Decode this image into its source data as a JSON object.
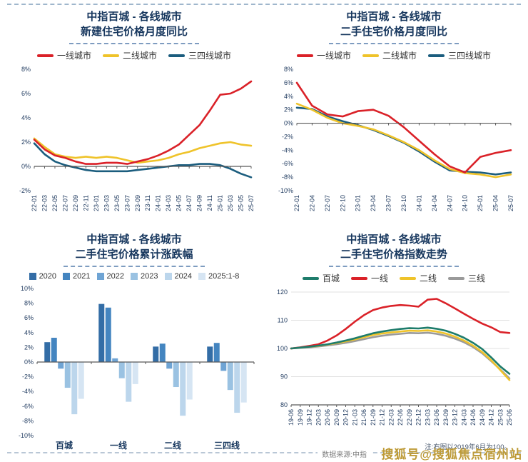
{
  "page": {
    "source_note": "数据来源:中指",
    "watermark": "搜狐号@搜狐焦点宿州站"
  },
  "chart_data": [
    {
      "id": "new-home-price-yoy",
      "type": "line",
      "title": [
        "中指百城 - 各线城市",
        "新建住宅价格月度同比"
      ],
      "ylim": [
        -2,
        8
      ],
      "yticks": [
        8,
        6,
        4,
        2,
        0,
        -2
      ],
      "ytick_suffix": "%",
      "axis": "zero",
      "grid": false,
      "legend_position": "top",
      "x": [
        "22-01",
        "22-03",
        "22-05",
        "22-07",
        "22-09",
        "22-11",
        "23-01",
        "23-03",
        "23-05",
        "23-07",
        "23-09",
        "23-11",
        "24-01",
        "24-03",
        "24-05",
        "24-07",
        "24-09",
        "24-11",
        "25-01",
        "25-03",
        "25-05",
        "25-07"
      ],
      "series": [
        {
          "name": "一线城市",
          "color": "#da2128",
          "values": [
            2.2,
            1.4,
            0.9,
            0.7,
            0.4,
            0.2,
            0.2,
            0.3,
            0.3,
            0.2,
            0.4,
            0.6,
            0.9,
            1.3,
            1.8,
            2.6,
            3.4,
            4.6,
            5.9,
            6.0,
            6.4,
            7.0
          ]
        },
        {
          "name": "二线城市",
          "color": "#efc32a",
          "values": [
            2.3,
            1.6,
            1.0,
            0.8,
            0.7,
            0.8,
            0.7,
            0.8,
            0.7,
            0.5,
            0.3,
            0.4,
            0.5,
            0.7,
            1.0,
            1.2,
            1.5,
            1.7,
            1.9,
            2.0,
            1.8,
            1.7
          ]
        },
        {
          "name": "三四线城市",
          "color": "#1b5d7e",
          "values": [
            1.9,
            1.0,
            0.4,
            0.1,
            -0.1,
            -0.3,
            -0.4,
            -0.4,
            -0.4,
            -0.4,
            -0.3,
            -0.2,
            -0.1,
            0.0,
            0.1,
            0.1,
            0.2,
            0.2,
            0.1,
            -0.2,
            -0.6,
            -0.9
          ]
        }
      ]
    },
    {
      "id": "second-hand-price-yoy",
      "type": "line",
      "title": [
        "中指百城 - 各线城市",
        "二手住宅价格月度同比"
      ],
      "ylim": [
        -10,
        8
      ],
      "yticks": [
        8,
        6,
        4,
        2,
        0,
        -2,
        -4,
        -6,
        -8,
        -10
      ],
      "ytick_suffix": "%",
      "axis": "zero",
      "grid": false,
      "legend_position": "top",
      "x": [
        "22-01",
        "22-04",
        "22-07",
        "22-10",
        "23-01",
        "23-04",
        "23-07",
        "23-10",
        "24-01",
        "24-04",
        "24-07",
        "24-10",
        "25-01",
        "25-04",
        "25-07"
      ],
      "series": [
        {
          "name": "一线城市",
          "color": "#da2128",
          "values": [
            6.0,
            2.6,
            1.3,
            1.0,
            1.8,
            2.0,
            1.1,
            -0.6,
            -2.6,
            -4.6,
            -6.4,
            -7.3,
            -5.0,
            -4.4,
            -4.0
          ]
        },
        {
          "name": "二线城市",
          "color": "#efc32a",
          "values": [
            2.9,
            2.0,
            0.8,
            0.0,
            -0.4,
            -0.9,
            -1.8,
            -2.8,
            -4.0,
            -5.5,
            -6.8,
            -7.4,
            -7.6,
            -8.0,
            -7.6
          ]
        },
        {
          "name": "三四线城市",
          "color": "#1b5d7e",
          "values": [
            2.3,
            2.1,
            1.0,
            0.3,
            -0.3,
            -1.0,
            -1.9,
            -2.9,
            -4.2,
            -5.7,
            -7.0,
            -7.2,
            -7.3,
            -7.6,
            -7.3
          ]
        }
      ]
    },
    {
      "id": "second-hand-cumulative-change",
      "type": "bar",
      "title": [
        "中指百城 - 各线城市",
        "二手住宅价格累计涨跌幅"
      ],
      "ylim": [
        -10,
        10
      ],
      "yticks": [
        10,
        8,
        6,
        4,
        2,
        0,
        -2,
        -4,
        -6,
        -8,
        -10
      ],
      "ytick_suffix": "%",
      "axis": "zero",
      "grid": false,
      "legend_position": "top",
      "categories": [
        "百城",
        "一线",
        "二线",
        "三四线"
      ],
      "series": [
        {
          "name": "2020",
          "color": "#336da6",
          "values": [
            2.7,
            7.9,
            2.1,
            2.1
          ]
        },
        {
          "name": "2021",
          "color": "#4485c0",
          "values": [
            3.3,
            7.4,
            2.5,
            2.6
          ]
        },
        {
          "name": "2022",
          "color": "#6fa4d4",
          "values": [
            -0.9,
            0.5,
            -0.9,
            -1.2
          ]
        },
        {
          "name": "2023",
          "color": "#9ac2e2",
          "values": [
            -3.5,
            -2.2,
            -3.4,
            -3.8
          ]
        },
        {
          "name": "2024",
          "color": "#bcd6ec",
          "values": [
            -7.1,
            -5.4,
            -7.3,
            -6.9
          ]
        },
        {
          "name": "2025:1-8",
          "color": "#d6e5f3",
          "values": [
            -5.0,
            -3.0,
            -5.1,
            -5.5
          ]
        }
      ]
    },
    {
      "id": "second-hand-price-index",
      "type": "line",
      "title": [
        "中指百城 - 各线城市",
        "二手住宅价格指数走势"
      ],
      "ylim": [
        80,
        120
      ],
      "yticks": [
        120,
        110,
        100,
        90,
        80
      ],
      "ytick_suffix": "",
      "axis": "bottom",
      "grid": true,
      "legend_position": "top",
      "note": "注:右图以2019年6月为100。",
      "x": [
        "19-06",
        "19-09",
        "19-12",
        "20-03",
        "20-06",
        "20-09",
        "20-12",
        "21-03",
        "21-06",
        "21-09",
        "21-12",
        "22-03",
        "22-06",
        "22-09",
        "22-12",
        "23-03",
        "23-06",
        "23-09",
        "23-12",
        "24-03",
        "24-06",
        "24-09",
        "24-12",
        "25-03",
        "25-06"
      ],
      "series": [
        {
          "name": "百城",
          "color": "#1e7c6b",
          "values": [
            100,
            100.3,
            100.6,
            101,
            101.5,
            102.1,
            102.8,
            103.6,
            104.5,
            105.4,
            106,
            106.5,
            106.9,
            107.2,
            107.1,
            107.4,
            107,
            106.3,
            105.2,
            103.8,
            102,
            99.8,
            96.8,
            93.6,
            91
          ]
        },
        {
          "name": "一线",
          "color": "#da2128",
          "values": [
            100,
            100.4,
            100.9,
            101.5,
            102.8,
            104.6,
            106.9,
            109.5,
            111.8,
            113.6,
            114.5,
            115.1,
            115.4,
            115.2,
            114.8,
            117.3,
            117.6,
            116,
            114.2,
            112.3,
            110.5,
            108.8,
            107.5,
            105.8,
            105.5
          ]
        },
        {
          "name": "二线",
          "color": "#efc32a",
          "values": [
            100,
            100.3,
            100.6,
            100.9,
            101.4,
            101.9,
            102.5,
            103.2,
            104,
            104.8,
            105.3,
            105.7,
            106,
            106.3,
            106.2,
            106.4,
            106,
            105.3,
            104.2,
            102.8,
            101,
            98.7,
            95.8,
            92.3,
            88.8
          ]
        },
        {
          "name": "三线",
          "color": "#9a9a9a",
          "values": [
            100,
            100.2,
            100.4,
            100.7,
            101.1,
            101.5,
            102,
            102.6,
            103.3,
            104,
            104.5,
            104.9,
            105.2,
            105.5,
            105.4,
            105.6,
            105.2,
            104.5,
            103.5,
            102.2,
            100.5,
            98.3,
            95.5,
            92.5,
            89.4
          ]
        }
      ]
    }
  ]
}
